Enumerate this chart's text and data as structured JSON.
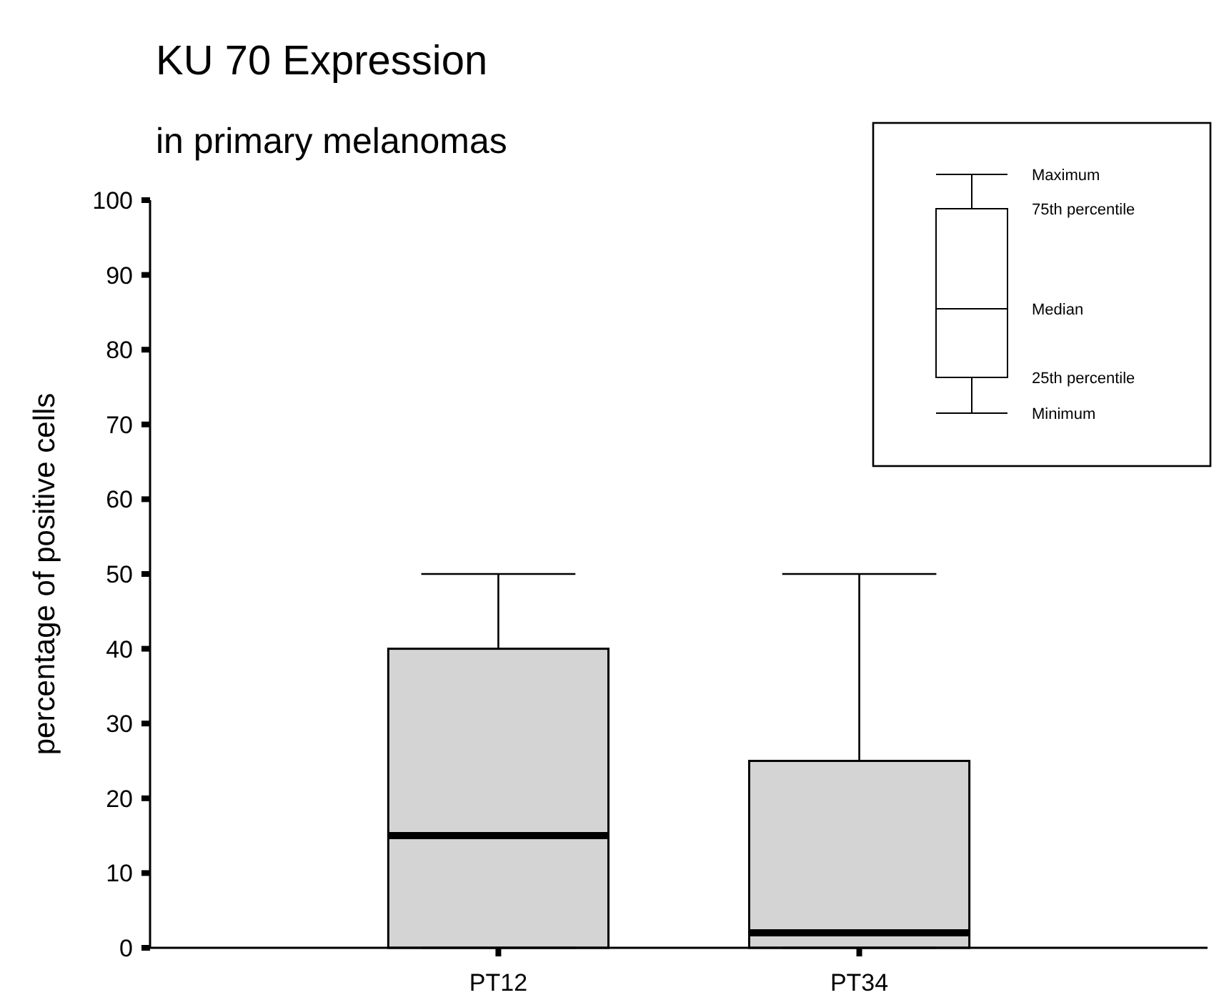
{
  "chart_data": {
    "type": "box",
    "title": "KU 70 Expression",
    "subtitle": "in primary melanomas",
    "ylabel": "percentage of positive cells",
    "categories": [
      "PT12",
      "PT34"
    ],
    "boxes": [
      {
        "low": 0,
        "q1": 0,
        "median": 15,
        "q3": 40,
        "high": 50
      },
      {
        "low": 0,
        "q1": 0,
        "median": 2,
        "q3": 25,
        "high": 50
      }
    ],
    "color": "#d4d4d4",
    "ylim": [
      0,
      100
    ],
    "yticks": [
      0,
      10,
      20,
      30,
      40,
      50,
      60,
      70,
      80,
      90,
      100
    ],
    "annotations": [
      "Maximum",
      "75th percentile",
      "Median",
      "25th percentile",
      "Minimum"
    ],
    "grid": false
  }
}
